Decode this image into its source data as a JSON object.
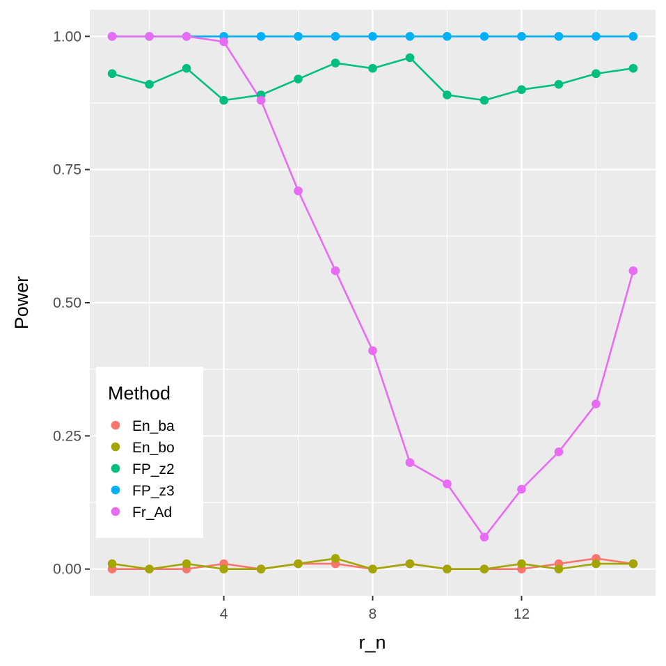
{
  "chart_data": {
    "type": "line",
    "title": "",
    "xlabel": "r_n",
    "ylabel": "Power",
    "x": [
      1,
      2,
      3,
      4,
      5,
      6,
      7,
      8,
      9,
      10,
      11,
      12,
      13,
      14,
      15
    ],
    "xlim": [
      0.4,
      15.6
    ],
    "ylim": [
      -0.05,
      1.05
    ],
    "x_ticks": [
      4,
      8,
      12
    ],
    "x_tick_labels": [
      "4",
      "8",
      "12"
    ],
    "y_ticks": [
      0,
      0.25,
      0.5,
      0.75,
      1.0
    ],
    "y_tick_labels": [
      "0.00",
      "0.25",
      "0.50",
      "0.75",
      "1.00"
    ],
    "grid": true,
    "legend": {
      "title": "Method",
      "position": "bottom-left"
    },
    "series": [
      {
        "name": "En_ba",
        "color": "#F8766D",
        "values": [
          0.0,
          0.0,
          0.0,
          0.01,
          0.0,
          0.01,
          0.01,
          0.0,
          0.01,
          0.0,
          0.0,
          0.0,
          0.01,
          0.02,
          0.01
        ]
      },
      {
        "name": "En_bo",
        "color": "#A3A500",
        "values": [
          0.01,
          0.0,
          0.01,
          0.0,
          0.0,
          0.01,
          0.02,
          0.0,
          0.01,
          0.0,
          0.0,
          0.01,
          0.0,
          0.01,
          0.01
        ]
      },
      {
        "name": "FP_z2",
        "color": "#00BF7D",
        "values": [
          0.93,
          0.91,
          0.94,
          0.88,
          0.89,
          0.92,
          0.95,
          0.94,
          0.96,
          0.89,
          0.88,
          0.9,
          0.91,
          0.93,
          0.94
        ]
      },
      {
        "name": "FP_z3",
        "color": "#00B0F6",
        "values": [
          1.0,
          1.0,
          1.0,
          1.0,
          1.0,
          1.0,
          1.0,
          1.0,
          1.0,
          1.0,
          1.0,
          1.0,
          1.0,
          1.0,
          1.0
        ]
      },
      {
        "name": "Fr_Ad",
        "color": "#E76BF3",
        "values": [
          1.0,
          1.0,
          1.0,
          0.99,
          0.88,
          0.71,
          0.56,
          0.41,
          0.2,
          0.16,
          0.06,
          0.15,
          0.22,
          0.31,
          0.56
        ]
      }
    ]
  }
}
